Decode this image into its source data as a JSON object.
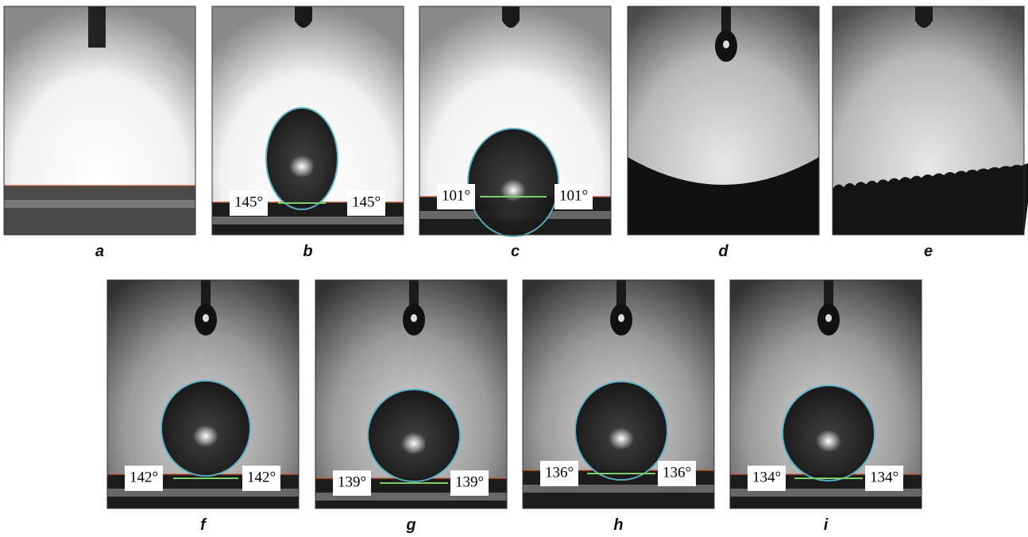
{
  "panels": [
    {
      "label": "a"
    },
    {
      "label": "b",
      "left_angle": "145°",
      "right_angle": "145°"
    },
    {
      "label": "c",
      "left_angle": "101°",
      "right_angle": "101°"
    },
    {
      "label": "d"
    },
    {
      "label": "e"
    },
    {
      "label": "f",
      "left_angle": "142°",
      "right_angle": "142°"
    },
    {
      "label": "g",
      "left_angle": "139°",
      "right_angle": "139°"
    },
    {
      "label": "h",
      "left_angle": "136°",
      "right_angle": "136°"
    },
    {
      "label": "i",
      "left_angle": "134°",
      "right_angle": "134°"
    }
  ]
}
